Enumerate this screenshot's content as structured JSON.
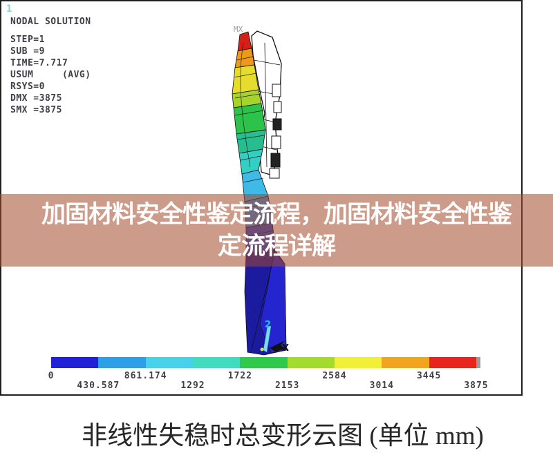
{
  "plot": {
    "window_label": "1",
    "solution_info": {
      "lines": [
        "NODAL SOLUTION",
        "STEP=1",
        "SUB =9",
        "TIME=7.717",
        "USUM     (AVG)",
        "RSYS=0",
        "DMX =3875",
        "SMX =3875"
      ]
    },
    "model": {
      "max_point_label": "MX",
      "triad_vertical_label": "2",
      "triad_horizontal_label": "X"
    }
  },
  "banner": {
    "line1": "加固材料安全性鉴定流程，加固材料安全性鉴",
    "line2": "定流程详解",
    "background": "rgba(164,72,41,0.55)",
    "text_color": "#ffffff"
  },
  "caption": {
    "text": "非线性失稳时总变形云图 (单位 mm)"
  },
  "chart_data": {
    "type": "heatmap",
    "title": "非线性失稳时总变形云图 (单位 mm)",
    "unit": "mm",
    "result_quantity": "USUM (AVG)",
    "load_step": {
      "step": 1,
      "substep": 9,
      "time": 7.717,
      "rsys": 0,
      "dmx": 3875,
      "smx": 3875
    },
    "colorbar": {
      "range": [
        0,
        3875
      ],
      "tick_values": [
        0,
        430.587,
        861.174,
        1292,
        1722,
        2153,
        2584,
        3014,
        3445,
        3875
      ],
      "tick_labels": [
        "0",
        "430.587",
        "861.174",
        "1292",
        "1722",
        "2153",
        "2584",
        "3014",
        "3445",
        "3875"
      ],
      "segment_colors": [
        "#2121d6",
        "#2d9fe8",
        "#45d2ea",
        "#3fdcc0",
        "#2fc94c",
        "#a4dc2d",
        "#f2ef39",
        "#f2a41f",
        "#e8251c"
      ],
      "end_cap_color": "#9a9a9a",
      "label_color": "#3f3f48"
    }
  }
}
